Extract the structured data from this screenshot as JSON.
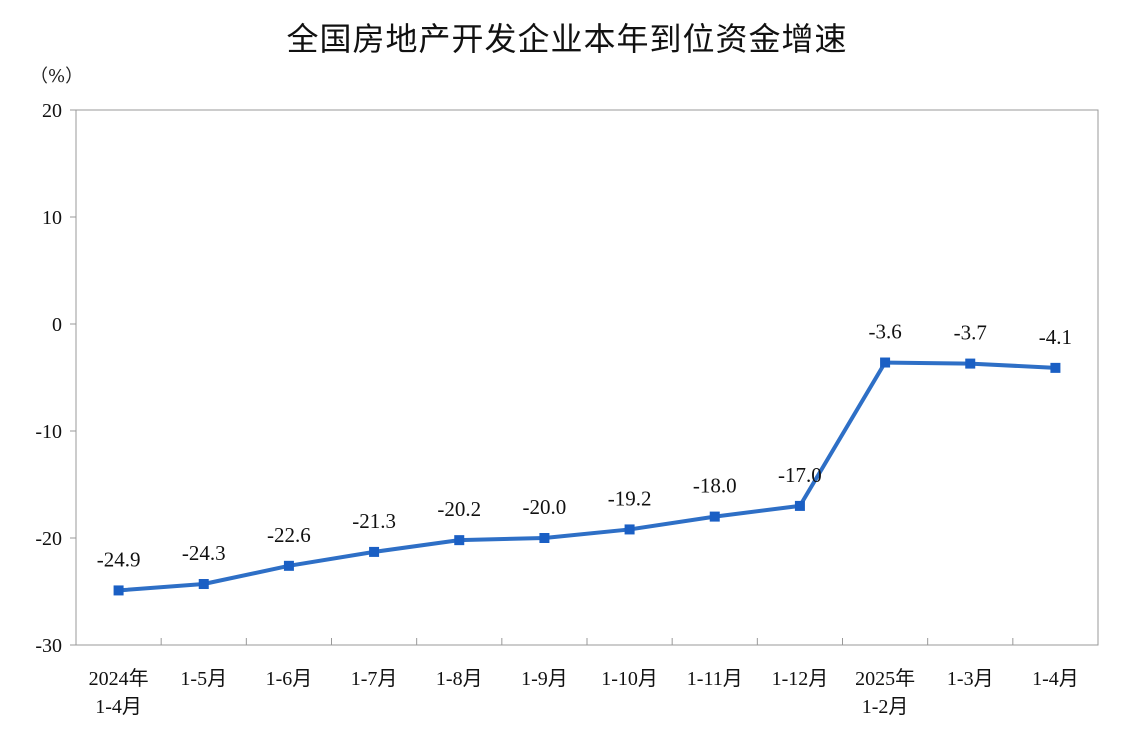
{
  "chart_data": {
    "type": "line",
    "title": "全国房地产开发企业本年到位资金增速",
    "unit_label": "（%）",
    "categories": [
      [
        "2024年",
        "1-4月"
      ],
      [
        "1-5月"
      ],
      [
        "1-6月"
      ],
      [
        "1-7月"
      ],
      [
        "1-8月"
      ],
      [
        "1-9月"
      ],
      [
        "1-10月"
      ],
      [
        "1-11月"
      ],
      [
        "1-12月"
      ],
      [
        "2025年",
        "1-2月"
      ],
      [
        "1-3月"
      ],
      [
        "1-4月"
      ]
    ],
    "values": [
      -24.9,
      -24.3,
      -22.6,
      -21.3,
      -20.2,
      -20.0,
      -19.2,
      -18.0,
      -17.0,
      -3.6,
      -3.7,
      -4.1
    ],
    "data_labels": [
      "-24.9",
      "-24.3",
      "-22.6",
      "-21.3",
      "-20.2",
      "-20.0",
      "-19.2",
      "-18.0",
      "-17.0",
      "-3.6",
      "-3.7",
      "-4.1"
    ],
    "ylim": [
      -30,
      20
    ],
    "yticks": [
      20,
      10,
      0,
      -10,
      -20,
      -30
    ],
    "ytick_labels": [
      "20",
      "10",
      "0",
      "-10",
      "-20",
      "-30"
    ],
    "grid": false,
    "colors": {
      "line": "#2e6fc6",
      "marker": "#1a5fc4",
      "axis": "#999999"
    }
  }
}
